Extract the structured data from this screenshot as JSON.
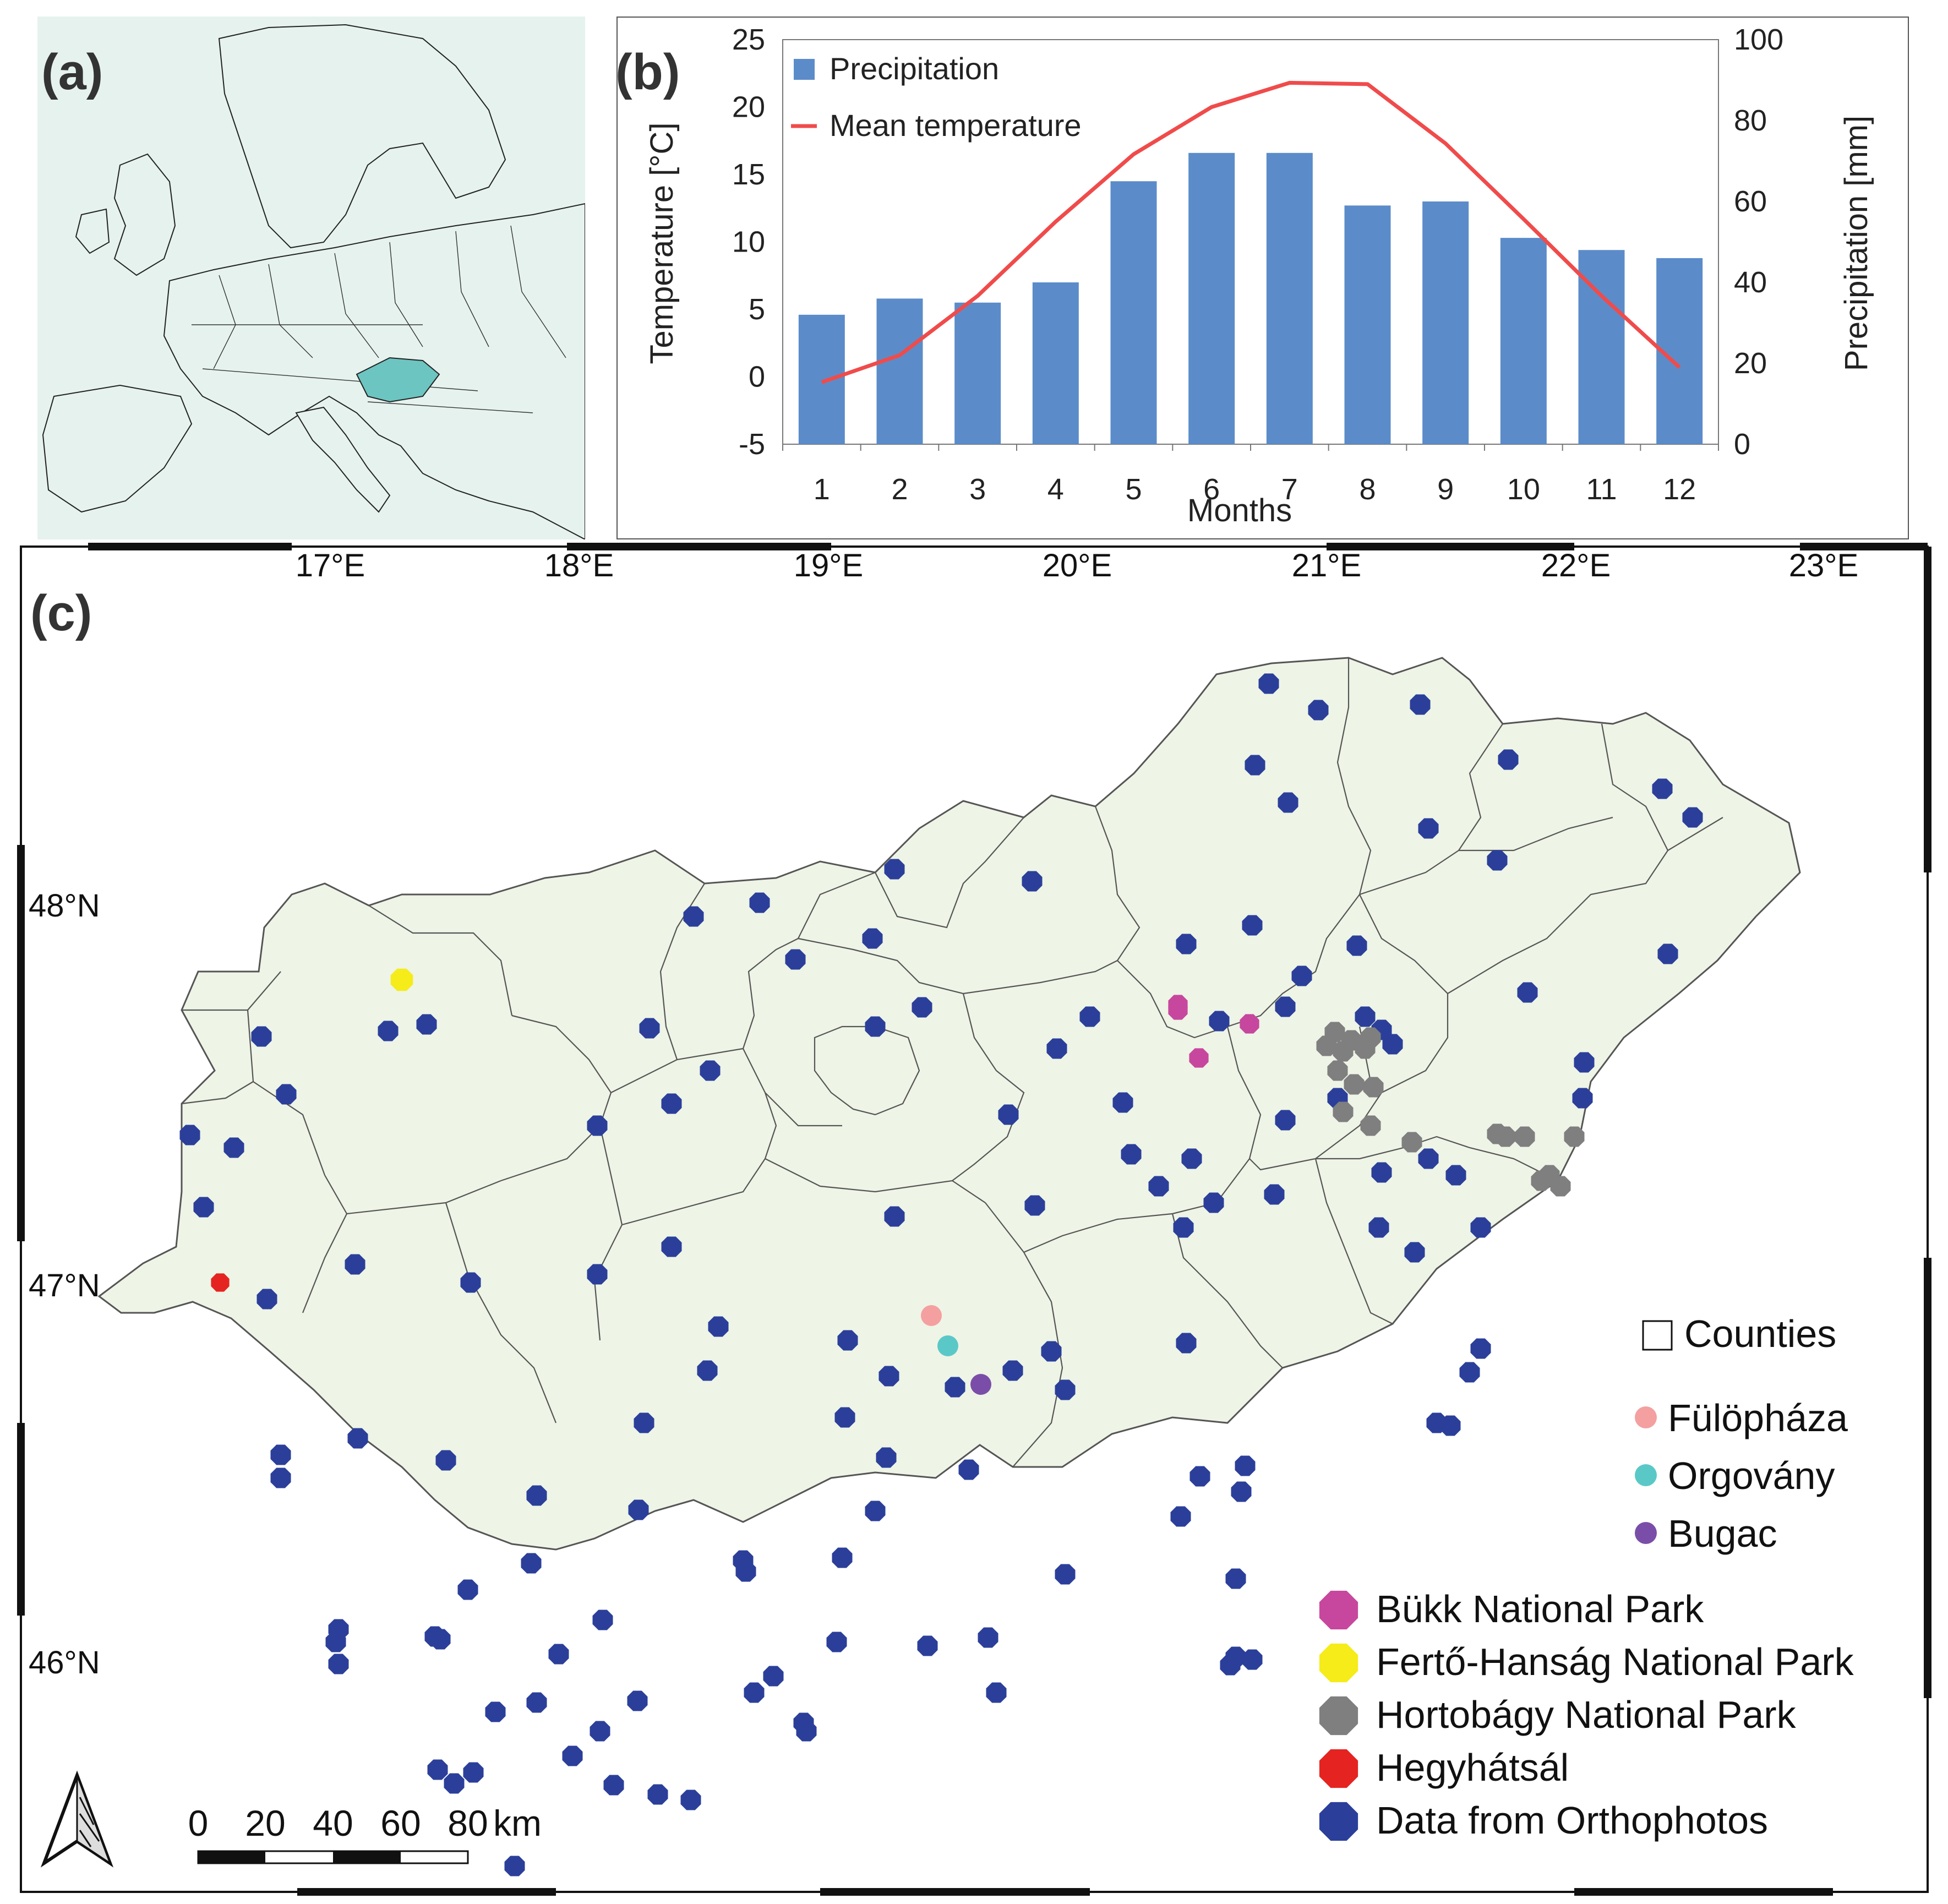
{
  "panels": {
    "a": "(a)",
    "b": "(b)",
    "c": "(c)"
  },
  "europe_map": {
    "highlight_color": "#6cc5c1",
    "land_color": "#e6f2ee",
    "highlighted_country": "Hungary"
  },
  "chart_data": {
    "type": "bar",
    "xlabel": "Months",
    "ylabel_left": "Temperature [°C]",
    "ylabel_right": "Precipitation [mm]",
    "categories": [
      "1",
      "2",
      "3",
      "4",
      "5",
      "6",
      "7",
      "8",
      "9",
      "10",
      "11",
      "12"
    ],
    "left_ylim": [
      -5,
      25
    ],
    "left_ticks": [
      "-5",
      "0",
      "5",
      "10",
      "15",
      "20",
      "25"
    ],
    "right_ylim": [
      0,
      100
    ],
    "right_ticks": [
      "0",
      "20",
      "40",
      "60",
      "80",
      "100"
    ],
    "legend_position": "top-left",
    "series": [
      {
        "name": "Precipitation",
        "type": "bar",
        "axis": "right",
        "color": "#5b8cc9",
        "values": [
          32,
          36,
          35,
          40,
          65,
          72,
          72,
          59,
          60,
          51,
          48,
          46
        ]
      },
      {
        "name": "Mean temperature",
        "type": "line",
        "axis": "left",
        "color": "#f04b4b",
        "values": [
          -0.4,
          1.6,
          6.0,
          11.5,
          16.5,
          20.0,
          21.8,
          21.7,
          17.3,
          11.7,
          6.0,
          0.7
        ]
      }
    ]
  },
  "map": {
    "lon_labels": [
      "17°E",
      "18°E",
      "19°E",
      "20°E",
      "21°E",
      "22°E",
      "23°E"
    ],
    "lat_labels": [
      "48°N",
      "47°N",
      "46°N"
    ],
    "legend": {
      "counties": "Counties",
      "sites": [
        {
          "label": "Fülöpháza",
          "color": "#f4a0a0"
        },
        {
          "label": "Orgovány",
          "color": "#5bc8c8"
        },
        {
          "label": "Bugac",
          "color": "#7a4ea8"
        }
      ],
      "areas": [
        {
          "label": "Bükk National Park",
          "color": "#c7479e"
        },
        {
          "label": "Fertő-Hanság National Park",
          "color": "#f5ec19"
        },
        {
          "label": "Hortobágy National Park",
          "color": "#7f7f7f"
        },
        {
          "label": "Hegyhátsál",
          "color": "#e52421"
        },
        {
          "label": "Data from Orthophotos",
          "color": "#2b3f9a"
        }
      ]
    },
    "scale_bar": {
      "labels": [
        "0",
        "20",
        "40",
        "60",
        "80"
      ],
      "unit": "km"
    },
    "colors": {
      "country_fill": "#eef4e6",
      "border": "#555555"
    }
  }
}
